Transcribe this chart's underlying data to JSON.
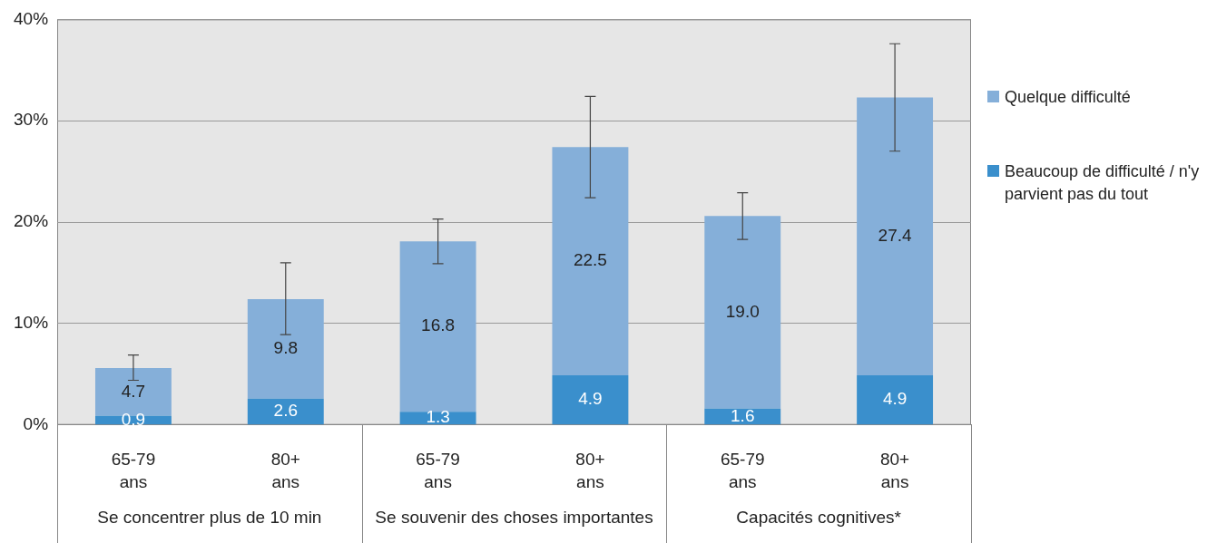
{
  "chart_data": {
    "type": "bar",
    "stacked": true,
    "categories": [
      "65-79 ans",
      "80+ ans",
      "65-79 ans",
      "80+ ans",
      "65-79 ans",
      "80+ ans"
    ],
    "annotations": [
      "Se concentrer plus de 10 min",
      "Se souvenir des choses importantes",
      "Capacités cognitives*"
    ],
    "series": [
      {
        "name": "Beaucoup de difficulté / n'y parvient pas du tout",
        "color": "#3a8fcc",
        "values": [
          0.9,
          2.6,
          1.3,
          4.9,
          1.6,
          4.9
        ],
        "value_labels": [
          "0.9",
          "2.6",
          "1.3",
          "4.9",
          "1.6",
          "4.9"
        ]
      },
      {
        "name": "Quelque difficulté",
        "color": "#85afd9",
        "values": [
          4.7,
          9.8,
          16.8,
          22.5,
          19.0,
          27.4
        ],
        "value_labels": [
          "4.7",
          "9.8",
          "16.8",
          "22.5",
          "19.0",
          "27.4"
        ],
        "errors": [
          [
            4.4,
            6.9
          ],
          [
            8.9,
            16.0
          ],
          [
            15.9,
            20.3
          ],
          [
            22.4,
            32.4
          ],
          [
            18.3,
            22.9
          ],
          [
            27.0,
            37.6
          ]
        ]
      }
    ],
    "ylim": [
      0,
      40
    ],
    "yticks": [
      {
        "value": 0,
        "label": "0%"
      },
      {
        "value": 10,
        "label": "10%"
      },
      {
        "value": 20,
        "label": "20%"
      },
      {
        "value": 30,
        "label": "30%"
      },
      {
        "value": 40,
        "label": "40%"
      }
    ],
    "grid": "y",
    "legend": "right"
  }
}
